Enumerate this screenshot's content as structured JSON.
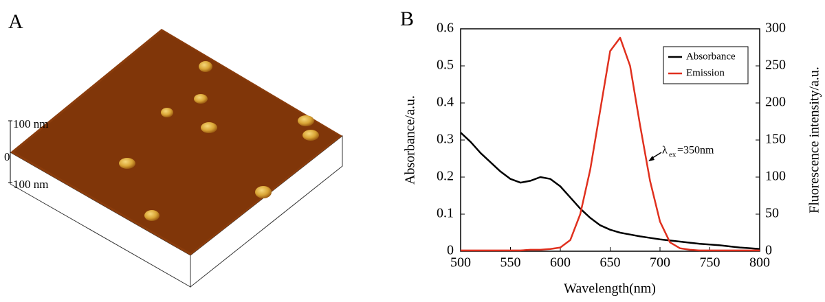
{
  "panel_a": {
    "label": "A",
    "scale_labels": [
      "100 nm",
      "0",
      "100 nm"
    ]
  },
  "chart_data": {
    "type": "line",
    "panel_label": "B",
    "x_label": "Wavelength(nm)",
    "y_label": "Absorbance/a.u.",
    "y2_label": "Fluorescence intensity/a.u.",
    "annotation": {
      "symbol": "λ",
      "subscript": "ex",
      "text": "=350nm"
    },
    "x": [
      500,
      510,
      520,
      530,
      540,
      550,
      560,
      570,
      580,
      590,
      600,
      610,
      620,
      630,
      640,
      650,
      660,
      670,
      680,
      690,
      700,
      710,
      720,
      730,
      740,
      750,
      760,
      770,
      780,
      790,
      800
    ],
    "xlim": [
      500,
      800
    ],
    "xticks": [
      500,
      550,
      600,
      650,
      700,
      750,
      800
    ],
    "ylim": [
      0,
      0.6
    ],
    "yticks": [
      0,
      0.1,
      0.2,
      0.3,
      0.4,
      0.5,
      0.6
    ],
    "y2lim": [
      0,
      300
    ],
    "y2ticks": [
      0,
      50,
      100,
      150,
      200,
      250,
      300
    ],
    "legend": "upper right",
    "series": [
      {
        "name": "Absorbance",
        "color": "#000000",
        "values": [
          0.32,
          0.295,
          0.265,
          0.24,
          0.215,
          0.195,
          0.185,
          0.19,
          0.2,
          0.195,
          0.175,
          0.145,
          0.115,
          0.09,
          0.07,
          0.058,
          0.05,
          0.045,
          0.04,
          0.036,
          0.032,
          0.029,
          0.026,
          0.023,
          0.02,
          0.018,
          0.016,
          0.013,
          0.01,
          0.008,
          0.006
        ]
      },
      {
        "name": "Emission",
        "color": "#e0301e",
        "axis": "y2",
        "values": [
          1,
          1,
          1,
          1,
          1,
          1,
          1,
          2,
          2,
          3,
          5,
          15,
          50,
          110,
          190,
          270,
          288,
          250,
          170,
          95,
          40,
          12,
          4,
          2,
          1,
          1,
          1,
          1,
          1,
          1,
          1
        ]
      }
    ]
  }
}
